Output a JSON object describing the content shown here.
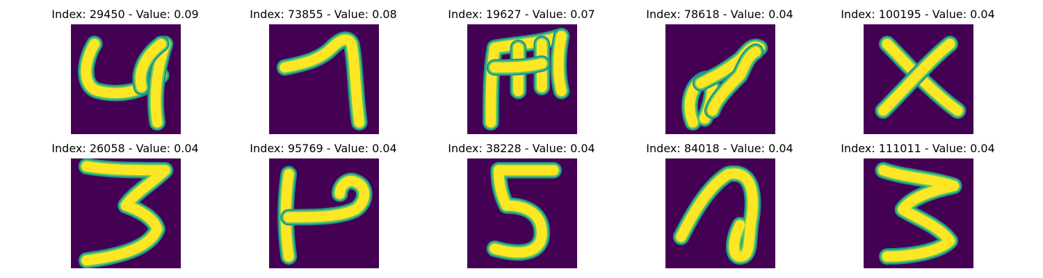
{
  "panels": [
    {
      "index": "29450",
      "value": "0.09",
      "title": "Index: 29450 - Value: 0.09",
      "image": "handwritten-4-image"
    },
    {
      "index": "73855",
      "value": "0.08",
      "title": "Index: 73855 - Value: 0.08",
      "image": "handwritten-7-image"
    },
    {
      "index": "19627",
      "value": "0.07",
      "title": "Index: 19627 - Value: 0.07",
      "image": "handwritten-m-image"
    },
    {
      "index": "78618",
      "value": "0.04",
      "title": "Index: 78618 - Value: 0.04",
      "image": "handwritten-scribble-image"
    },
    {
      "index": "100195",
      "value": "0.04",
      "title": "Index: 100195 - Value: 0.04",
      "image": "handwritten-x-image"
    },
    {
      "index": "26058",
      "value": "0.04",
      "title": "Index: 26058 - Value: 0.04",
      "image": "handwritten-3-image"
    },
    {
      "index": "95769",
      "value": "0.04",
      "title": "Index: 95769 - Value: 0.04",
      "image": "handwritten-p-image"
    },
    {
      "index": "38228",
      "value": "0.04",
      "title": "Index: 38228 - Value: 0.04",
      "image": "handwritten-5-image"
    },
    {
      "index": "84018",
      "value": "0.04",
      "title": "Index: 84018 - Value: 0.04",
      "image": "handwritten-loop-image"
    },
    {
      "index": "111011",
      "value": "0.04",
      "title": "Index: 111011 - Value: 0.04",
      "image": "handwritten-3-alt-image"
    }
  ],
  "colors": {
    "background": "#440154",
    "stroke_core": "#fde725",
    "stroke_mid": "#5ec962",
    "stroke_edge": "#21918c"
  }
}
